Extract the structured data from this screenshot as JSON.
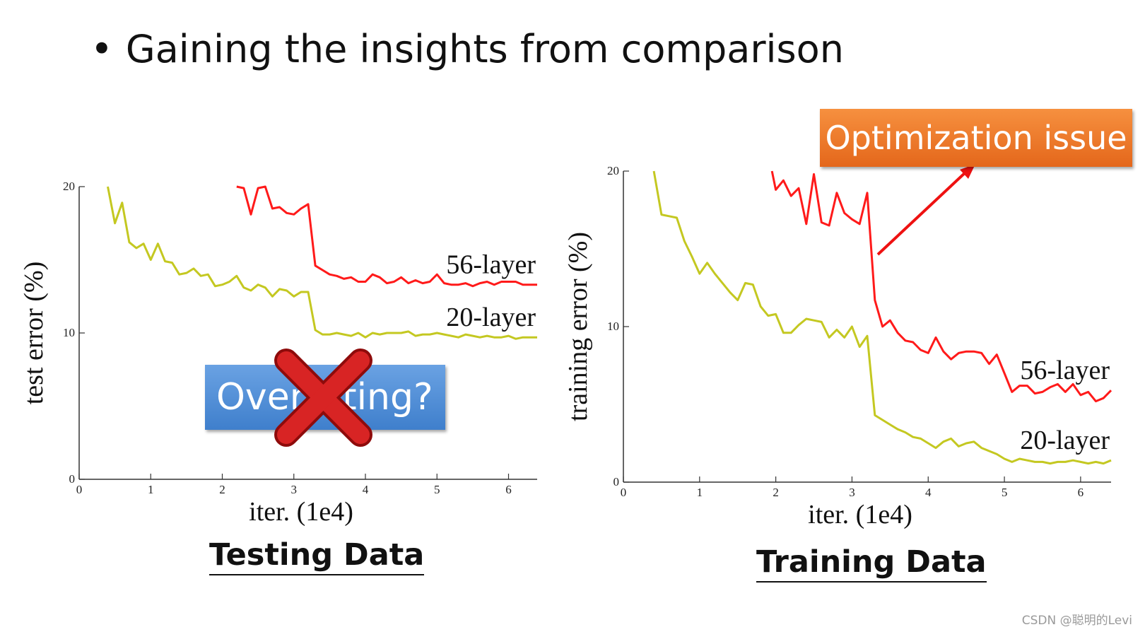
{
  "title": "Gaining the insights from comparison",
  "callout": "Optimization issue",
  "overfitting_label": "Overfitting?",
  "watermark": "CSDN @聪明的Levi",
  "colors": {
    "deep": "#ff1a1a",
    "shallow": "#c4c821",
    "callout": "#ec7a2c",
    "overfit_box": "#4f8fd9",
    "cross": "#cc1111"
  },
  "chart_data": [
    {
      "type": "line",
      "caption": "Testing Data",
      "xlabel": "iter. (1e4)",
      "ylabel": "test error (%)",
      "xlim": [
        0,
        6.4
      ],
      "ylim": [
        0,
        20
      ],
      "xticks": [
        "0",
        "1",
        "2",
        "3",
        "4",
        "5",
        "6"
      ],
      "yticks": [
        "0",
        "10",
        "20"
      ],
      "series": [
        {
          "name": "56-layer",
          "x": [
            2.2,
            2.3,
            2.4,
            2.5,
            2.6,
            2.7,
            2.8,
            2.9,
            3.0,
            3.1,
            3.2,
            3.3,
            3.4,
            3.5,
            3.6,
            3.7,
            3.8,
            3.9,
            4.0,
            4.1,
            4.2,
            4.3,
            4.4,
            4.5,
            4.6,
            4.7,
            4.8,
            4.9,
            5.0,
            5.1,
            5.2,
            5.3,
            5.4,
            5.5,
            5.6,
            5.7,
            5.8,
            5.9,
            6.0,
            6.1,
            6.2,
            6.3,
            6.4
          ],
          "y": [
            20,
            19.9,
            18.1,
            19.9,
            20,
            18.5,
            18.6,
            18.2,
            18.1,
            18.5,
            18.8,
            14.6,
            14.3,
            14.0,
            13.9,
            13.7,
            13.8,
            13.5,
            13.5,
            14.0,
            13.8,
            13.4,
            13.5,
            13.8,
            13.4,
            13.6,
            13.4,
            13.5,
            14.0,
            13.4,
            13.3,
            13.3,
            13.4,
            13.2,
            13.4,
            13.5,
            13.3,
            13.5,
            13.5,
            13.5,
            13.3,
            13.3,
            13.3
          ]
        },
        {
          "name": "20-layer",
          "x": [
            0.4,
            0.5,
            0.6,
            0.7,
            0.8,
            0.9,
            1.0,
            1.1,
            1.2,
            1.3,
            1.4,
            1.5,
            1.6,
            1.7,
            1.8,
            1.9,
            2.0,
            2.1,
            2.2,
            2.3,
            2.4,
            2.5,
            2.6,
            2.7,
            2.8,
            2.9,
            3.0,
            3.1,
            3.2,
            3.3,
            3.4,
            3.5,
            3.6,
            3.7,
            3.8,
            3.9,
            4.0,
            4.1,
            4.2,
            4.3,
            4.4,
            4.5,
            4.6,
            4.7,
            4.8,
            4.9,
            5.0,
            5.1,
            5.2,
            5.3,
            5.4,
            5.5,
            5.6,
            5.7,
            5.8,
            5.9,
            6.0,
            6.1,
            6.2,
            6.3,
            6.4
          ],
          "y": [
            20,
            17.5,
            18.9,
            16.2,
            15.8,
            16.1,
            15.0,
            16.1,
            14.9,
            14.8,
            14.0,
            14.1,
            14.4,
            13.9,
            14.0,
            13.2,
            13.3,
            13.5,
            13.9,
            13.1,
            12.9,
            13.3,
            13.1,
            12.5,
            13.0,
            12.9,
            12.5,
            12.8,
            12.8,
            10.2,
            9.9,
            9.9,
            10.0,
            9.9,
            9.8,
            10.0,
            9.7,
            10.0,
            9.9,
            10.0,
            10.0,
            10.0,
            10.1,
            9.8,
            9.9,
            9.9,
            10.0,
            9.9,
            9.8,
            9.7,
            9.9,
            9.8,
            9.7,
            9.8,
            9.7,
            9.7,
            9.8,
            9.6,
            9.7,
            9.7,
            9.7
          ]
        }
      ]
    },
    {
      "type": "line",
      "caption": "Training Data",
      "xlabel": "iter. (1e4)",
      "ylabel": "training error (%)",
      "xlim": [
        0,
        6.4
      ],
      "ylim": [
        0,
        20
      ],
      "xticks": [
        "0",
        "1",
        "2",
        "3",
        "4",
        "5",
        "6"
      ],
      "yticks": [
        "0",
        "10",
        "20"
      ],
      "series": [
        {
          "name": "56-layer",
          "x": [
            1.95,
            2.0,
            2.1,
            2.2,
            2.3,
            2.4,
            2.5,
            2.6,
            2.7,
            2.8,
            2.9,
            3.0,
            3.1,
            3.2,
            3.3,
            3.4,
            3.5,
            3.6,
            3.7,
            3.8,
            3.9,
            4.0,
            4.1,
            4.2,
            4.3,
            4.4,
            4.5,
            4.6,
            4.7,
            4.8,
            4.9,
            5.0,
            5.1,
            5.2,
            5.3,
            5.4,
            5.5,
            5.6,
            5.7,
            5.8,
            5.9,
            6.0,
            6.1,
            6.2,
            6.3,
            6.4
          ],
          "y": [
            20,
            18.8,
            19.4,
            18.4,
            18.9,
            16.6,
            19.8,
            16.7,
            16.5,
            18.6,
            17.3,
            16.9,
            16.6,
            18.6,
            11.7,
            10.0,
            10.4,
            9.6,
            9.1,
            9.0,
            8.5,
            8.3,
            9.3,
            8.4,
            7.9,
            8.3,
            8.4,
            8.4,
            8.3,
            7.6,
            8.2,
            7.0,
            5.8,
            6.2,
            6.2,
            5.7,
            5.8,
            6.1,
            6.3,
            5.8,
            6.3,
            5.6,
            5.8,
            5.2,
            5.4,
            5.9
          ]
        },
        {
          "name": "20-layer",
          "x": [
            0.4,
            0.5,
            0.6,
            0.7,
            0.8,
            0.9,
            1.0,
            1.1,
            1.2,
            1.3,
            1.4,
            1.5,
            1.6,
            1.7,
            1.8,
            1.9,
            2.0,
            2.1,
            2.2,
            2.3,
            2.4,
            2.5,
            2.6,
            2.7,
            2.8,
            2.9,
            3.0,
            3.1,
            3.2,
            3.3,
            3.4,
            3.5,
            3.6,
            3.7,
            3.8,
            3.9,
            4.0,
            4.1,
            4.2,
            4.3,
            4.4,
            4.5,
            4.6,
            4.7,
            4.8,
            4.9,
            5.0,
            5.1,
            5.2,
            5.3,
            5.4,
            5.5,
            5.6,
            5.7,
            5.8,
            5.9,
            6.0,
            6.1,
            6.2,
            6.3,
            6.4
          ],
          "y": [
            20,
            17.2,
            17.1,
            17.0,
            15.5,
            14.5,
            13.4,
            14.1,
            13.4,
            12.8,
            12.2,
            11.7,
            12.8,
            12.7,
            11.3,
            10.7,
            10.8,
            9.6,
            9.6,
            10.1,
            10.5,
            10.4,
            10.3,
            9.3,
            9.8,
            9.3,
            10.0,
            8.7,
            9.4,
            4.3,
            4.0,
            3.7,
            3.4,
            3.2,
            2.9,
            2.8,
            2.5,
            2.2,
            2.6,
            2.8,
            2.3,
            2.5,
            2.6,
            2.2,
            2.0,
            1.8,
            1.5,
            1.3,
            1.5,
            1.4,
            1.3,
            1.3,
            1.2,
            1.3,
            1.3,
            1.4,
            1.3,
            1.2,
            1.3,
            1.2,
            1.4
          ]
        }
      ]
    }
  ]
}
